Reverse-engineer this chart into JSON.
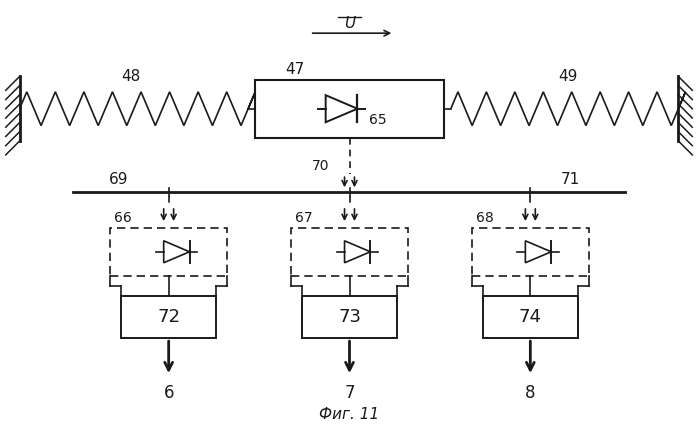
{
  "bg_color": "#ffffff",
  "line_color": "#1a1a1a",
  "fig_width": 6.99,
  "fig_height": 4.34,
  "dpi": 100,
  "title": "Фиг. 11",
  "velocity_label": "U"
}
